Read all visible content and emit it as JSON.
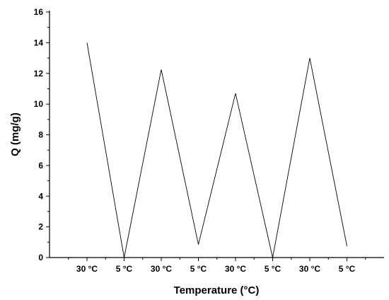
{
  "chart_data": {
    "type": "line",
    "title": "",
    "xlabel": "Temperature (°C)",
    "ylabel": "Q (mg/g)",
    "categories": [
      "30 °C",
      "5 °C",
      "30 °C",
      "5 °C",
      "30 °C",
      "5 °C",
      "30 °C",
      "5 °C"
    ],
    "series": [
      {
        "values": [
          14.0,
          0.0,
          12.25,
          0.85,
          10.7,
          0.0,
          13.0,
          0.75
        ],
        "color": "#000000"
      }
    ],
    "ylim": [
      0,
      16
    ],
    "yticks": [
      0,
      2,
      4,
      6,
      8,
      10,
      12,
      14,
      16
    ],
    "grid": false,
    "legend": false
  }
}
